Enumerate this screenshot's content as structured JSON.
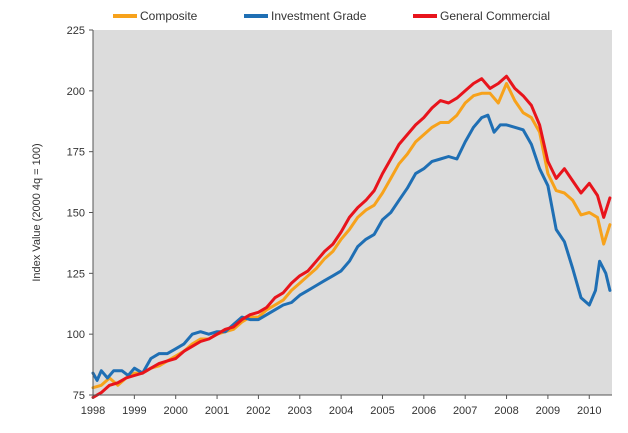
{
  "chart_data": {
    "type": "line",
    "ylabel": "Index Value (2000 4q = 100)",
    "ylim": [
      75,
      225
    ],
    "yticks": [
      75,
      100,
      125,
      150,
      175,
      200,
      225
    ],
    "xlim": [
      1998.0,
      2010.55
    ],
    "xticks": [
      1998,
      1999,
      2000,
      2001,
      2002,
      2003,
      2004,
      2005,
      2006,
      2007,
      2008,
      2009,
      2010
    ],
    "grid": false,
    "background": "#dcdcdc",
    "legend_position": "top",
    "series": [
      {
        "name": "Composite",
        "color": "#f7a21b",
        "points": [
          [
            1998.0,
            78
          ],
          [
            1998.2,
            79
          ],
          [
            1998.4,
            82
          ],
          [
            1998.6,
            79
          ],
          [
            1998.8,
            82
          ],
          [
            1999.0,
            84
          ],
          [
            1999.2,
            84
          ],
          [
            1999.4,
            86
          ],
          [
            1999.6,
            87
          ],
          [
            1999.8,
            89
          ],
          [
            2000.0,
            91
          ],
          [
            2000.2,
            93
          ],
          [
            2000.4,
            96
          ],
          [
            2000.6,
            98
          ],
          [
            2000.8,
            98
          ],
          [
            2001.0,
            100
          ],
          [
            2001.2,
            101
          ],
          [
            2001.4,
            102
          ],
          [
            2001.6,
            105
          ],
          [
            2001.8,
            107
          ],
          [
            2002.0,
            107
          ],
          [
            2002.2,
            110
          ],
          [
            2002.4,
            112
          ],
          [
            2002.6,
            114
          ],
          [
            2002.8,
            118
          ],
          [
            2003.0,
            121
          ],
          [
            2003.2,
            124
          ],
          [
            2003.4,
            127
          ],
          [
            2003.6,
            131
          ],
          [
            2003.8,
            134
          ],
          [
            2004.0,
            139
          ],
          [
            2004.2,
            143
          ],
          [
            2004.4,
            148
          ],
          [
            2004.6,
            151
          ],
          [
            2004.8,
            153
          ],
          [
            2005.0,
            158
          ],
          [
            2005.2,
            164
          ],
          [
            2005.4,
            170
          ],
          [
            2005.6,
            174
          ],
          [
            2005.8,
            179
          ],
          [
            2006.0,
            182
          ],
          [
            2006.2,
            185
          ],
          [
            2006.4,
            187
          ],
          [
            2006.6,
            187
          ],
          [
            2006.8,
            190
          ],
          [
            2007.0,
            195
          ],
          [
            2007.2,
            198
          ],
          [
            2007.4,
            199
          ],
          [
            2007.6,
            199
          ],
          [
            2007.8,
            195
          ],
          [
            2008.0,
            203
          ],
          [
            2008.2,
            196
          ],
          [
            2008.4,
            191
          ],
          [
            2008.6,
            189
          ],
          [
            2008.8,
            183
          ],
          [
            2009.0,
            166
          ],
          [
            2009.2,
            159
          ],
          [
            2009.4,
            158
          ],
          [
            2009.6,
            155
          ],
          [
            2009.8,
            149
          ],
          [
            2010.0,
            150
          ],
          [
            2010.2,
            148
          ],
          [
            2010.35,
            137
          ],
          [
            2010.5,
            145
          ]
        ]
      },
      {
        "name": "Investment Grade",
        "color": "#1f6fb4",
        "points": [
          [
            1998.0,
            84
          ],
          [
            1998.1,
            81
          ],
          [
            1998.2,
            85
          ],
          [
            1998.35,
            82
          ],
          [
            1998.5,
            85
          ],
          [
            1998.7,
            85
          ],
          [
            1998.85,
            83
          ],
          [
            1999.0,
            86
          ],
          [
            1999.2,
            84
          ],
          [
            1999.4,
            90
          ],
          [
            1999.6,
            92
          ],
          [
            1999.8,
            92
          ],
          [
            2000.0,
            94
          ],
          [
            2000.2,
            96
          ],
          [
            2000.4,
            100
          ],
          [
            2000.6,
            101
          ],
          [
            2000.8,
            100
          ],
          [
            2001.0,
            101
          ],
          [
            2001.2,
            101
          ],
          [
            2001.4,
            104
          ],
          [
            2001.6,
            107
          ],
          [
            2001.8,
            106
          ],
          [
            2002.0,
            106
          ],
          [
            2002.2,
            108
          ],
          [
            2002.4,
            110
          ],
          [
            2002.6,
            112
          ],
          [
            2002.8,
            113
          ],
          [
            2003.0,
            116
          ],
          [
            2003.2,
            118
          ],
          [
            2003.4,
            120
          ],
          [
            2003.6,
            122
          ],
          [
            2003.8,
            124
          ],
          [
            2004.0,
            126
          ],
          [
            2004.2,
            130
          ],
          [
            2004.4,
            136
          ],
          [
            2004.6,
            139
          ],
          [
            2004.8,
            141
          ],
          [
            2005.0,
            147
          ],
          [
            2005.2,
            150
          ],
          [
            2005.4,
            155
          ],
          [
            2005.6,
            160
          ],
          [
            2005.8,
            166
          ],
          [
            2006.0,
            168
          ],
          [
            2006.2,
            171
          ],
          [
            2006.4,
            172
          ],
          [
            2006.6,
            173
          ],
          [
            2006.8,
            172
          ],
          [
            2007.0,
            179
          ],
          [
            2007.2,
            185
          ],
          [
            2007.4,
            189
          ],
          [
            2007.55,
            190
          ],
          [
            2007.7,
            183
          ],
          [
            2007.85,
            186
          ],
          [
            2008.0,
            186
          ],
          [
            2008.2,
            185
          ],
          [
            2008.4,
            184
          ],
          [
            2008.6,
            178
          ],
          [
            2008.8,
            168
          ],
          [
            2009.0,
            161
          ],
          [
            2009.2,
            143
          ],
          [
            2009.4,
            138
          ],
          [
            2009.6,
            127
          ],
          [
            2009.8,
            115
          ],
          [
            2010.0,
            112
          ],
          [
            2010.15,
            118
          ],
          [
            2010.25,
            130
          ],
          [
            2010.4,
            125
          ],
          [
            2010.5,
            118
          ]
        ]
      },
      {
        "name": "General Commercial",
        "color": "#e8141c",
        "points": [
          [
            1998.0,
            74
          ],
          [
            1998.2,
            76
          ],
          [
            1998.4,
            79
          ],
          [
            1998.6,
            80
          ],
          [
            1998.8,
            82
          ],
          [
            1999.0,
            83
          ],
          [
            1999.2,
            84
          ],
          [
            1999.4,
            86
          ],
          [
            1999.6,
            88
          ],
          [
            1999.8,
            89
          ],
          [
            2000.0,
            90
          ],
          [
            2000.2,
            93
          ],
          [
            2000.4,
            95
          ],
          [
            2000.6,
            97
          ],
          [
            2000.8,
            98
          ],
          [
            2001.0,
            100
          ],
          [
            2001.2,
            102
          ],
          [
            2001.4,
            103
          ],
          [
            2001.6,
            106
          ],
          [
            2001.8,
            108
          ],
          [
            2002.0,
            109
          ],
          [
            2002.2,
            111
          ],
          [
            2002.4,
            115
          ],
          [
            2002.6,
            117
          ],
          [
            2002.8,
            121
          ],
          [
            2003.0,
            124
          ],
          [
            2003.2,
            126
          ],
          [
            2003.4,
            130
          ],
          [
            2003.6,
            134
          ],
          [
            2003.8,
            137
          ],
          [
            2004.0,
            142
          ],
          [
            2004.2,
            148
          ],
          [
            2004.4,
            152
          ],
          [
            2004.6,
            155
          ],
          [
            2004.8,
            159
          ],
          [
            2005.0,
            166
          ],
          [
            2005.2,
            172
          ],
          [
            2005.4,
            178
          ],
          [
            2005.6,
            182
          ],
          [
            2005.8,
            186
          ],
          [
            2006.0,
            189
          ],
          [
            2006.2,
            193
          ],
          [
            2006.4,
            196
          ],
          [
            2006.6,
            195
          ],
          [
            2006.8,
            197
          ],
          [
            2007.0,
            200
          ],
          [
            2007.2,
            203
          ],
          [
            2007.4,
            205
          ],
          [
            2007.6,
            201
          ],
          [
            2007.8,
            203
          ],
          [
            2008.0,
            206
          ],
          [
            2008.2,
            201
          ],
          [
            2008.4,
            198
          ],
          [
            2008.6,
            194
          ],
          [
            2008.8,
            186
          ],
          [
            2009.0,
            171
          ],
          [
            2009.2,
            164
          ],
          [
            2009.4,
            168
          ],
          [
            2009.6,
            163
          ],
          [
            2009.8,
            158
          ],
          [
            2010.0,
            162
          ],
          [
            2010.2,
            157
          ],
          [
            2010.35,
            148
          ],
          [
            2010.5,
            156
          ]
        ]
      }
    ]
  }
}
